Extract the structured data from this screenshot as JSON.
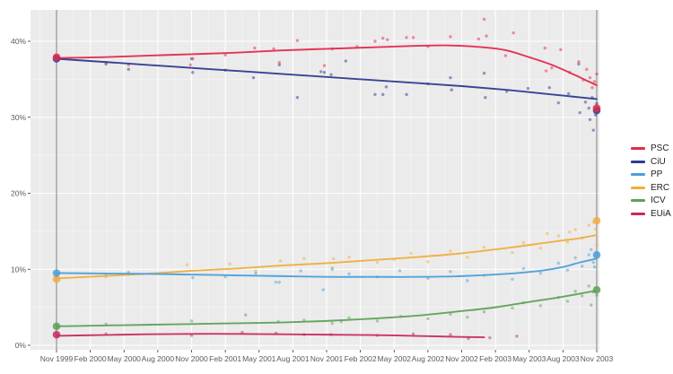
{
  "chart_data": {
    "type": "scatter",
    "title": "",
    "xlabel": "",
    "ylabel": "",
    "x_axis": {
      "tick_labels": [
        "Nov 1999",
        "Feb 2000",
        "May 2000",
        "Aug 2000",
        "Nov 2000",
        "Feb 2001",
        "May 2001",
        "Aug 2001",
        "Nov 2001",
        "Feb 2002",
        "May 2002",
        "Aug 2002",
        "Nov 2002",
        "Feb 2003",
        "May 2003",
        "Aug 2003",
        "Nov 2003"
      ],
      "tick_months": [
        0,
        3,
        6,
        9,
        12,
        15,
        18,
        21,
        24,
        27,
        30,
        33,
        36,
        39,
        42,
        45,
        48
      ],
      "unit": "months since Nov 1999"
    },
    "y_axis": {
      "tick_labels": [
        "0%",
        "10%",
        "20%",
        "30%",
        "40%"
      ],
      "tick_values": [
        0,
        10,
        20,
        30,
        40
      ],
      "range": [
        0,
        44.1
      ],
      "grid": true
    },
    "reference_lines": [
      {
        "label": "Nov 1999",
        "month": 0
      },
      {
        "label": "Nov 2003",
        "month": 48
      }
    ],
    "legend": {
      "position": "right",
      "entries": [
        "PSC",
        "CiU",
        "PP",
        "ERC",
        "ICV",
        "EUiA"
      ]
    },
    "colors": {
      "panel_bg": "#EBEBEB",
      "grid_major": "#FFFFFF",
      "grid_minor": "#F5F5F5",
      "axis_text": "#5A5A5A",
      "tick_mark": "#333333",
      "reference_line": "#808080"
    },
    "series": [
      {
        "name": "PSC",
        "color": "#E4294B",
        "election_start": 37.9,
        "election_end": 31.2,
        "trend": [
          [
            0,
            37.8
          ],
          [
            4,
            37.9
          ],
          [
            8,
            38.1
          ],
          [
            12,
            38.3
          ],
          [
            16,
            38.5
          ],
          [
            20,
            38.8
          ],
          [
            24,
            39.0
          ],
          [
            28,
            39.2
          ],
          [
            32,
            39.4
          ],
          [
            35,
            39.45
          ],
          [
            38,
            39.2
          ],
          [
            40,
            38.8
          ],
          [
            42,
            37.9
          ],
          [
            44,
            36.9
          ],
          [
            46,
            35.6
          ],
          [
            47,
            34.9
          ],
          [
            48,
            34.2
          ]
        ],
        "polls": [
          [
            4.4,
            37.2
          ],
          [
            6.4,
            36.9
          ],
          [
            11.9,
            36.9
          ],
          [
            12.1,
            37.7
          ],
          [
            15.0,
            38.2
          ],
          [
            17.6,
            39.1
          ],
          [
            19.3,
            39.0
          ],
          [
            19.8,
            37.2
          ],
          [
            21.4,
            40.1
          ],
          [
            23.8,
            36.8
          ],
          [
            24.5,
            39.0
          ],
          [
            26.7,
            39.3
          ],
          [
            28.3,
            40.0
          ],
          [
            29.0,
            40.4
          ],
          [
            29.4,
            40.2
          ],
          [
            31.1,
            40.5
          ],
          [
            31.7,
            40.5
          ],
          [
            33.0,
            39.3
          ],
          [
            35.0,
            40.6
          ],
          [
            37.5,
            40.3
          ],
          [
            38.0,
            42.9
          ],
          [
            38.2,
            40.7
          ],
          [
            39.9,
            38.1
          ],
          [
            40.6,
            41.1
          ],
          [
            43.4,
            39.1
          ],
          [
            43.5,
            36.1
          ],
          [
            44.0,
            36.5
          ],
          [
            44.8,
            38.9
          ],
          [
            45.6,
            35.9
          ],
          [
            46.4,
            37.3
          ],
          [
            46.8,
            34.9
          ],
          [
            47.1,
            36.3
          ],
          [
            47.4,
            35.2
          ],
          [
            47.6,
            33.9
          ],
          [
            47.8,
            34.7
          ],
          [
            48.0,
            35.7
          ]
        ]
      },
      {
        "name": "CiU",
        "color": "#2D3B90",
        "election_start": 37.7,
        "election_end": 30.9,
        "trend": [
          [
            0,
            37.7
          ],
          [
            4,
            37.3
          ],
          [
            8,
            36.9
          ],
          [
            12,
            36.5
          ],
          [
            16,
            36.1
          ],
          [
            20,
            35.7
          ],
          [
            24,
            35.3
          ],
          [
            28,
            34.9
          ],
          [
            32,
            34.5
          ],
          [
            36,
            34.1
          ],
          [
            40,
            33.6
          ],
          [
            44,
            33.0
          ],
          [
            46,
            32.7
          ],
          [
            48,
            32.4
          ]
        ],
        "polls": [
          [
            4.4,
            37.0
          ],
          [
            6.4,
            36.3
          ],
          [
            12.0,
            37.7
          ],
          [
            12.1,
            35.9
          ],
          [
            15.0,
            36.2
          ],
          [
            17.5,
            35.2
          ],
          [
            19.8,
            36.9
          ],
          [
            21.4,
            32.6
          ],
          [
            23.5,
            36.0
          ],
          [
            23.8,
            35.9
          ],
          [
            24.4,
            35.6
          ],
          [
            25.7,
            37.4
          ],
          [
            28.3,
            33.0
          ],
          [
            29.0,
            33.0
          ],
          [
            29.3,
            34.0
          ],
          [
            31.1,
            33.0
          ],
          [
            33.0,
            34.4
          ],
          [
            35.0,
            35.2
          ],
          [
            35.1,
            33.6
          ],
          [
            38.0,
            35.8
          ],
          [
            38.1,
            32.6
          ],
          [
            40.0,
            33.4
          ],
          [
            41.9,
            33.8
          ],
          [
            43.8,
            33.9
          ],
          [
            44.6,
            31.9
          ],
          [
            45.5,
            33.1
          ],
          [
            46.4,
            37.0
          ],
          [
            46.5,
            30.6
          ],
          [
            47.0,
            32.0
          ],
          [
            47.3,
            31.2
          ],
          [
            47.4,
            29.7
          ],
          [
            47.6,
            32.6
          ],
          [
            47.7,
            28.3
          ],
          [
            47.9,
            30.3
          ],
          [
            48.0,
            31.8
          ]
        ]
      },
      {
        "name": "PP",
        "color": "#4C9FD7",
        "election_start": 9.5,
        "election_end": 11.9,
        "trend": [
          [
            0,
            9.5
          ],
          [
            4,
            9.45
          ],
          [
            8,
            9.4
          ],
          [
            12,
            9.3
          ],
          [
            16,
            9.2
          ],
          [
            20,
            9.1
          ],
          [
            24,
            9.0
          ],
          [
            28,
            9.0
          ],
          [
            32,
            9.0
          ],
          [
            36,
            9.1
          ],
          [
            40,
            9.4
          ],
          [
            43,
            9.8
          ],
          [
            45,
            10.3
          ],
          [
            46.5,
            10.9
          ],
          [
            48,
            11.4
          ]
        ],
        "polls": [
          [
            4.4,
            9.2
          ],
          [
            6.4,
            9.6
          ],
          [
            12.1,
            8.9
          ],
          [
            15.0,
            9.0
          ],
          [
            17.7,
            9.5
          ],
          [
            19.5,
            8.3
          ],
          [
            19.8,
            8.3
          ],
          [
            21.7,
            9.8
          ],
          [
            23.7,
            7.3
          ],
          [
            24.5,
            10.0
          ],
          [
            26.0,
            9.4
          ],
          [
            28.5,
            9.0
          ],
          [
            30.5,
            9.8
          ],
          [
            33.0,
            8.8
          ],
          [
            35.0,
            9.7
          ],
          [
            36.5,
            8.5
          ],
          [
            38.0,
            9.2
          ],
          [
            40.5,
            8.7
          ],
          [
            41.5,
            10.1
          ],
          [
            43.0,
            9.5
          ],
          [
            44.6,
            10.8
          ],
          [
            45.4,
            9.9
          ],
          [
            46.1,
            11.5
          ],
          [
            46.7,
            10.4
          ],
          [
            47.3,
            11.9
          ],
          [
            47.5,
            12.6
          ],
          [
            47.7,
            10.9
          ],
          [
            47.8,
            10.3
          ],
          [
            48.0,
            12.0
          ]
        ]
      },
      {
        "name": "ERC",
        "color": "#EFAE3F",
        "election_start": 8.7,
        "election_end": 16.4,
        "trend": [
          [
            0,
            8.8
          ],
          [
            4,
            9.1
          ],
          [
            8,
            9.4
          ],
          [
            12,
            9.8
          ],
          [
            16,
            10.1
          ],
          [
            20,
            10.5
          ],
          [
            24,
            10.8
          ],
          [
            28,
            11.2
          ],
          [
            32,
            11.6
          ],
          [
            36,
            12.1
          ],
          [
            40,
            12.8
          ],
          [
            43,
            13.4
          ],
          [
            45,
            13.8
          ],
          [
            46.5,
            14.1
          ],
          [
            48,
            14.5
          ]
        ],
        "polls": [
          [
            4.4,
            9.0
          ],
          [
            6.4,
            9.3
          ],
          [
            11.6,
            10.6
          ],
          [
            15.4,
            10.7
          ],
          [
            17.7,
            9.8
          ],
          [
            19.9,
            11.1
          ],
          [
            22.0,
            11.4
          ],
          [
            24.5,
            10.2
          ],
          [
            24.6,
            11.4
          ],
          [
            26.0,
            11.6
          ],
          [
            28.5,
            10.9
          ],
          [
            30.0,
            11.3
          ],
          [
            31.5,
            12.1
          ],
          [
            33.0,
            11.0
          ],
          [
            35.0,
            12.4
          ],
          [
            36.5,
            11.6
          ],
          [
            38.0,
            12.9
          ],
          [
            40.5,
            12.2
          ],
          [
            41.5,
            13.5
          ],
          [
            43.0,
            12.8
          ],
          [
            43.6,
            14.7
          ],
          [
            44.6,
            14.4
          ],
          [
            45.4,
            13.6
          ],
          [
            45.6,
            14.9
          ],
          [
            46.1,
            15.2
          ],
          [
            46.7,
            14.1
          ],
          [
            47.3,
            15.8
          ],
          [
            47.7,
            16.2
          ],
          [
            47.9,
            15.3
          ],
          [
            48.0,
            13.2
          ]
        ]
      },
      {
        "name": "ICV",
        "color": "#5FA158",
        "election_start": 2.5,
        "election_end": 7.3,
        "trend": [
          [
            0,
            2.5
          ],
          [
            4,
            2.6
          ],
          [
            8,
            2.7
          ],
          [
            12,
            2.8
          ],
          [
            16,
            2.9
          ],
          [
            20,
            3.0
          ],
          [
            24,
            3.2
          ],
          [
            28,
            3.5
          ],
          [
            32,
            3.9
          ],
          [
            36,
            4.5
          ],
          [
            39,
            5.0
          ],
          [
            42,
            5.7
          ],
          [
            45,
            6.4
          ],
          [
            48,
            7.2
          ]
        ],
        "polls": [
          [
            4.4,
            2.8
          ],
          [
            12.0,
            3.2
          ],
          [
            16.8,
            4.0
          ],
          [
            19.7,
            3.1
          ],
          [
            22.0,
            3.3
          ],
          [
            24.5,
            2.9
          ],
          [
            25.3,
            3.1
          ],
          [
            26.0,
            3.6
          ],
          [
            28.5,
            3.2
          ],
          [
            30.6,
            3.8
          ],
          [
            33.0,
            3.5
          ],
          [
            35.0,
            4.1
          ],
          [
            36.5,
            3.7
          ],
          [
            38.0,
            4.4
          ],
          [
            40.5,
            4.9
          ],
          [
            41.5,
            5.6
          ],
          [
            43.0,
            5.2
          ],
          [
            44.6,
            6.3
          ],
          [
            45.4,
            5.8
          ],
          [
            46.1,
            7.1
          ],
          [
            46.7,
            6.5
          ],
          [
            47.3,
            7.8
          ],
          [
            47.5,
            5.3
          ],
          [
            47.7,
            7.0
          ],
          [
            48.0,
            6.6
          ]
        ]
      },
      {
        "name": "EUiA",
        "color": "#C92A5D",
        "election_start": 1.4,
        "election_end": null,
        "trend": [
          [
            0,
            1.25
          ],
          [
            4,
            1.35
          ],
          [
            8,
            1.45
          ],
          [
            12,
            1.5
          ],
          [
            16,
            1.5
          ],
          [
            20,
            1.45
          ],
          [
            24,
            1.4
          ],
          [
            28,
            1.35
          ],
          [
            30,
            1.3
          ],
          [
            33,
            1.2
          ],
          [
            36,
            1.1
          ],
          [
            38,
            1.05
          ]
        ],
        "polls": [
          [
            4.4,
            1.5
          ],
          [
            12.0,
            1.3
          ],
          [
            16.5,
            1.7
          ],
          [
            19.5,
            1.6
          ],
          [
            22.0,
            1.4
          ],
          [
            24.4,
            1.4
          ],
          [
            28.5,
            1.3
          ],
          [
            31.7,
            1.5
          ],
          [
            35.0,
            1.4
          ],
          [
            36.6,
            0.9
          ],
          [
            38.5,
            1.0
          ],
          [
            40.9,
            1.2
          ]
        ]
      }
    ]
  }
}
